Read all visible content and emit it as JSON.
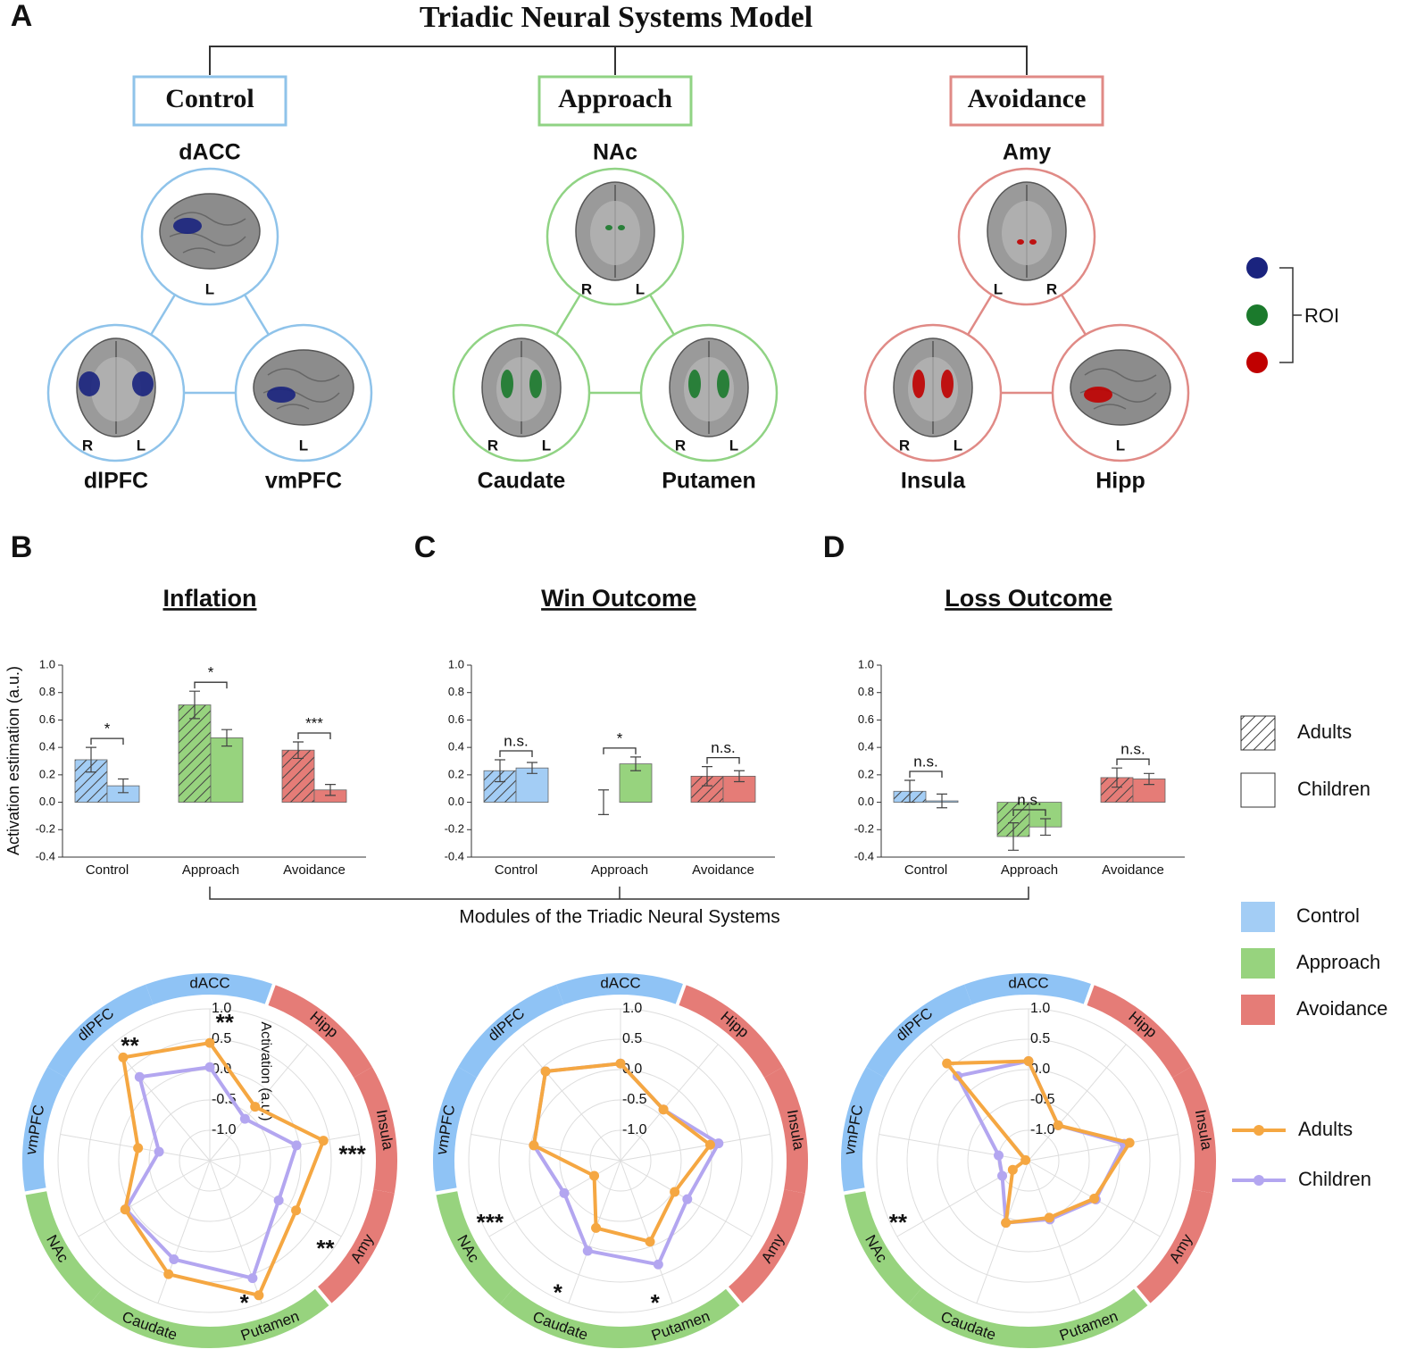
{
  "panel_labels": [
    "A",
    "B",
    "C",
    "D"
  ],
  "model": {
    "title": "Triadic Neural Systems Model",
    "roi_label": "ROI",
    "modules": [
      {
        "name": "Control",
        "color": "#8fc3ea",
        "roi_color": "#1a237e",
        "regions": [
          {
            "name": "dACC",
            "hemispheres": [
              "L"
            ]
          },
          {
            "name": "dlPFC",
            "hemispheres": [
              "R",
              "L"
            ]
          },
          {
            "name": "vmPFC",
            "hemispheres": [
              "L"
            ]
          }
        ]
      },
      {
        "name": "Approach",
        "color": "#90d384",
        "roi_color": "#1b7a2c",
        "regions": [
          {
            "name": "NAc",
            "hemispheres": [
              "R",
              "L"
            ]
          },
          {
            "name": "Caudate",
            "hemispheres": [
              "R",
              "L"
            ]
          },
          {
            "name": "Putamen",
            "hemispheres": [
              "R",
              "L"
            ]
          }
        ]
      },
      {
        "name": "Avoidance",
        "color": "#e08a86",
        "roi_color": "#c00000",
        "regions": [
          {
            "name": "Amy",
            "hemispheres": [
              "L",
              "R"
            ]
          },
          {
            "name": "Insula",
            "hemispheres": [
              "R",
              "L"
            ]
          },
          {
            "name": "Hipp",
            "hemispheres": [
              "L"
            ]
          }
        ]
      }
    ]
  },
  "shared_xlabel": "Modules of the Triadic Neural Systems",
  "chart_data": [
    {
      "type": "bar",
      "title": "Inflation",
      "ylabel": "Activation estimation (a.u.)",
      "categories": [
        "Control",
        "Approach",
        "Avoidance"
      ],
      "category_colors": [
        "#a3cdf5",
        "#97d37e",
        "#e57c77"
      ],
      "series": [
        {
          "name": "Adults",
          "hatch": true,
          "values": [
            0.31,
            0.71,
            0.38
          ],
          "errors": [
            0.09,
            0.1,
            0.06
          ]
        },
        {
          "name": "Children",
          "hatch": false,
          "values": [
            0.12,
            0.47,
            0.09
          ],
          "errors": [
            0.05,
            0.06,
            0.04
          ]
        }
      ],
      "significance": [
        "*",
        "*",
        "***"
      ],
      "ylim": [
        -0.4,
        1.0
      ],
      "yticks": [
        -0.4,
        -0.2,
        {
          "value": 0,
          "label": "0.0"
        },
        0.2,
        0.4,
        0.6,
        0.8,
        {
          "value": 1,
          "label": "1.0"
        }
      ]
    },
    {
      "type": "bar",
      "title": "Win Outcome",
      "categories": [
        "Control",
        "Approach",
        "Avoidance"
      ],
      "category_colors": [
        "#a3cdf5",
        "#97d37e",
        "#e57c77"
      ],
      "series": [
        {
          "name": "Adults",
          "hatch": true,
          "values": [
            0.23,
            0.0,
            0.19
          ],
          "errors": [
            0.08,
            0.09,
            0.07
          ]
        },
        {
          "name": "Children",
          "hatch": false,
          "values": [
            0.25,
            0.28,
            0.19
          ],
          "errors": [
            0.04,
            0.05,
            0.04
          ]
        }
      ],
      "significance": [
        "n.s.",
        "*",
        "n.s."
      ],
      "ylim": [
        -0.4,
        1.0
      ],
      "yticks": [
        -0.4,
        -0.2,
        {
          "value": 0,
          "label": "0.0"
        },
        0.2,
        0.4,
        0.6,
        0.8,
        {
          "value": 1,
          "label": "1.0"
        }
      ]
    },
    {
      "type": "bar",
      "title": "Loss Outcome",
      "categories": [
        "Control",
        "Approach",
        "Avoidance"
      ],
      "category_colors": [
        "#a3cdf5",
        "#97d37e",
        "#e57c77"
      ],
      "series": [
        {
          "name": "Adults",
          "hatch": true,
          "values": [
            0.08,
            -0.25,
            0.18
          ],
          "errors": [
            0.08,
            0.1,
            0.07
          ]
        },
        {
          "name": "Children",
          "hatch": false,
          "values": [
            0.01,
            -0.18,
            0.17
          ],
          "errors": [
            0.05,
            0.06,
            0.04
          ]
        }
      ],
      "significance": [
        "n.s.",
        "n.s.",
        "n.s."
      ],
      "ylim": [
        -0.4,
        1.0
      ],
      "yticks": [
        -0.4,
        -0.2,
        {
          "value": 0,
          "label": "0.0"
        },
        0.2,
        0.4,
        0.6,
        0.8,
        {
          "value": 1,
          "label": "1.0"
        }
      ]
    },
    {
      "type": "radar",
      "radial_label": "Activation (a.u.)",
      "axes": [
        "dACC",
        "Hipp",
        "Insula",
        "Amy",
        "Putamen",
        "Caudate",
        "NAc",
        "vmPFC",
        "dlPFC"
      ],
      "axis_colors": [
        "#8fc3f5",
        "#e57c77",
        "#e57c77",
        "#e57c77",
        "#97d37e",
        "#97d37e",
        "#97d37e",
        "#8fc3f5",
        "#8fc3f5"
      ],
      "rlim": [
        -1.5,
        1.0
      ],
      "rticks": [
        {
          "value": -1,
          "label": "-1.0"
        },
        -0.5,
        {
          "value": 0,
          "label": "0.0"
        },
        0.5,
        {
          "value": 1,
          "label": "1.0"
        }
      ],
      "series": [
        {
          "name": "Adults",
          "color": "#f5a742",
          "values": [
            0.44,
            -0.34,
            0.4,
            0.14,
            0.86,
            0.49,
            0.11,
            -0.3,
            0.72
          ]
        },
        {
          "name": "Children",
          "color": "#b3a6f0",
          "values": [
            0.04,
            -0.6,
            -0.05,
            -0.19,
            0.56,
            0.23,
            0.1,
            -0.65,
            0.3
          ]
        }
      ],
      "significance": [
        "**",
        null,
        "***",
        "**",
        "*",
        null,
        null,
        null,
        "**"
      ]
    },
    {
      "type": "radar",
      "axes": [
        "dACC",
        "Hipp",
        "Insula",
        "Amy",
        "Putamen",
        "Caudate",
        "NAc",
        "vmPFC",
        "dlPFC"
      ],
      "axis_colors": [
        "#8fc3f5",
        "#e57c77",
        "#e57c77",
        "#e57c77",
        "#97d37e",
        "#97d37e",
        "#97d37e",
        "#8fc3f5",
        "#8fc3f5"
      ],
      "rlim": [
        -1.5,
        1.0
      ],
      "rticks": [
        {
          "value": -1,
          "label": "-1.0"
        },
        -0.5,
        {
          "value": 0,
          "label": "0.0"
        },
        0.5,
        {
          "value": 1,
          "label": "1.0"
        }
      ],
      "series": [
        {
          "name": "Adults",
          "color": "#f5a742",
          "values": [
            0.1,
            -0.4,
            0.0,
            -0.47,
            -0.08,
            -0.32,
            -1.0,
            -0.05,
            0.42
          ]
        },
        {
          "name": "Children",
          "color": "#b3a6f0",
          "values": [
            0.1,
            -0.4,
            0.14,
            -0.23,
            0.32,
            0.08,
            -0.43,
            -0.05,
            0.42
          ]
        }
      ],
      "significance": [
        null,
        null,
        null,
        null,
        "*",
        "*",
        "***",
        null,
        null
      ]
    },
    {
      "type": "radar",
      "axes": [
        "dACC",
        "Hipp",
        "Insula",
        "Amy",
        "Putamen",
        "Caudate",
        "NAc",
        "vmPFC",
        "dlPFC"
      ],
      "axis_colors": [
        "#8fc3f5",
        "#e57c77",
        "#e57c77",
        "#e57c77",
        "#97d37e",
        "#97d37e",
        "#97d37e",
        "#8fc3f5",
        "#8fc3f5"
      ],
      "rlim": [
        -1.5,
        1.0
      ],
      "rticks": [
        {
          "value": -1,
          "label": "-1.0"
        },
        -0.5,
        {
          "value": 0,
          "label": "0.0"
        },
        0.5,
        {
          "value": 1,
          "label": "1.0"
        }
      ],
      "series": [
        {
          "name": "Adults",
          "color": "#f5a742",
          "values": [
            0.14,
            -0.74,
            0.19,
            -0.25,
            -0.5,
            -0.41,
            -1.2,
            -1.45,
            0.59
          ]
        },
        {
          "name": "Children",
          "color": "#b3a6f0",
          "values": [
            0.14,
            -0.74,
            0.1,
            -0.22,
            -0.47,
            -0.41,
            -1.0,
            -1.0,
            0.32
          ]
        }
      ],
      "significance": [
        null,
        null,
        null,
        null,
        null,
        null,
        "**",
        null,
        null
      ]
    }
  ]
}
